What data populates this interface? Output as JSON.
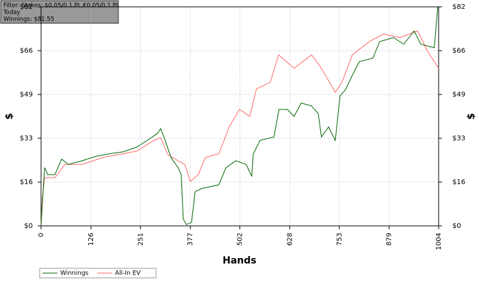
{
  "chart_data": {
    "type": "line",
    "info": [
      "Filter: Stakes: $0.05/0.1 PL,€0.05/0.1 PL",
      "Today",
      "Winnings: $81.55"
    ],
    "xlabel": "Hands",
    "ylabel": "$",
    "xlim": [
      0,
      1004
    ],
    "xticks": [
      0,
      126,
      251,
      377,
      502,
      628,
      753,
      879,
      1004
    ],
    "ylim": [
      0,
      82
    ],
    "yticks": [
      {
        "value": 0,
        "label": "$0"
      },
      {
        "value": 16.4,
        "label": "$16"
      },
      {
        "value": 32.8,
        "label": "$33"
      },
      {
        "value": 49.2,
        "label": "$49"
      },
      {
        "value": 65.6,
        "label": "$66"
      },
      {
        "value": 82,
        "label": "$82"
      }
    ],
    "grid": true,
    "series": [
      {
        "name": "Winnings",
        "color": "#006400",
        "x": [
          0,
          3,
          9,
          17,
          35,
          52,
          69,
          104,
          138,
          173,
          207,
          242,
          268,
          294,
          302,
          311,
          328,
          346,
          354,
          359,
          367,
          380,
          389,
          406,
          449,
          467,
          492,
          518,
          532,
          536,
          553,
          588,
          601,
          622,
          639,
          657,
          683,
          700,
          708,
          726,
          743,
          755,
          769,
          786,
          804,
          838,
          855,
          890,
          916,
          942,
          959,
          993,
          1002,
          1004
        ],
        "values": [
          0,
          7.7,
          21.8,
          19.2,
          19.2,
          25,
          23,
          24.4,
          26,
          27,
          27.7,
          29.5,
          32,
          34.6,
          36.4,
          33,
          25.6,
          21.8,
          19.2,
          2.6,
          0.5,
          1.3,
          12.8,
          14,
          15.4,
          21.8,
          24.4,
          23,
          18.5,
          27,
          32,
          33.3,
          43.6,
          43.6,
          41,
          46,
          44.9,
          42,
          33.3,
          37,
          32,
          48.7,
          51,
          56.4,
          61.5,
          62.8,
          69,
          70.5,
          68,
          73,
          68,
          66.7,
          82,
          81.55
        ]
      },
      {
        "name": "All-In EV",
        "color": "#ff6666",
        "x": [
          0,
          3,
          9,
          35,
          60,
          104,
          156,
          207,
          242,
          285,
          302,
          320,
          346,
          363,
          377,
          397,
          415,
          449,
          475,
          501,
          527,
          544,
          579,
          600,
          639,
          683,
          708,
          743,
          760,
          786,
          829,
          864,
          907,
          951,
          976,
          1004
        ],
        "values": [
          0,
          10,
          18,
          18,
          23,
          23,
          25.6,
          27,
          28,
          32,
          33,
          26.7,
          24.4,
          23,
          16.7,
          19.2,
          25.6,
          27,
          37,
          43.6,
          41,
          51.3,
          53.8,
          64,
          59,
          64,
          59,
          50,
          53.8,
          64,
          69,
          71.8,
          70.5,
          73,
          65.4,
          59
        ]
      }
    ]
  }
}
